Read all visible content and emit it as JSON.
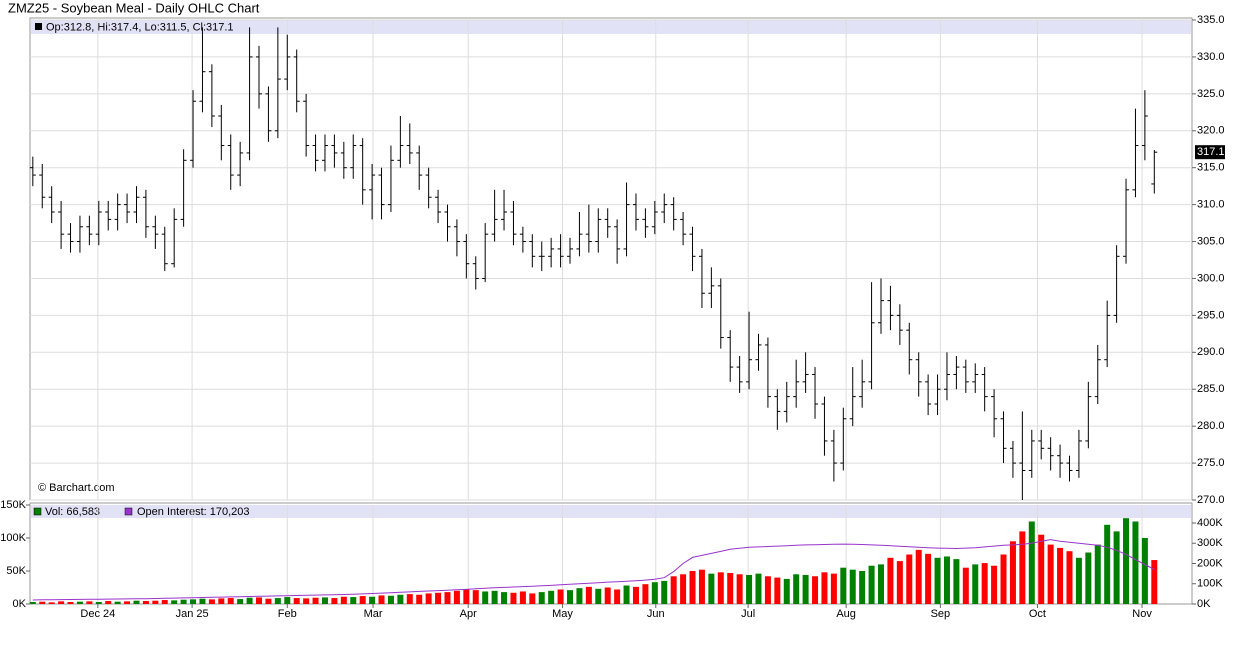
{
  "chart_data": {
    "type": "ohlc",
    "title": "ZMZ25 - Soybean Meal - Daily OHLC Chart",
    "info_text": "Op:312.8, Hi:317.4, Lo:311.5, Cl:317.1",
    "watermark": "© Barchart.com",
    "up_color": "#008000",
    "down_color": "#ff0000",
    "grid": true,
    "open": [
      315,
      314,
      311,
      309,
      306,
      305,
      307,
      306,
      309,
      308,
      310,
      309,
      311,
      307,
      306,
      302,
      308,
      316,
      324,
      328,
      322,
      318,
      314,
      317,
      330,
      325,
      320,
      327,
      330,
      324,
      318,
      316,
      318,
      317,
      315,
      318,
      312,
      314,
      310,
      316,
      318,
      317,
      314,
      311,
      309,
      307,
      305,
      302,
      300,
      306,
      308,
      309,
      306,
      305,
      303,
      303,
      304,
      303,
      304,
      306,
      305,
      308,
      307,
      304,
      310,
      308,
      307,
      309,
      310,
      308,
      306,
      303,
      298,
      299,
      292,
      288,
      286,
      289,
      291,
      284,
      282,
      284,
      286,
      287,
      283,
      278,
      275,
      281,
      284,
      286,
      294,
      297,
      295,
      293,
      289,
      286,
      283,
      285,
      287,
      288,
      286,
      287,
      284,
      281,
      277,
      275,
      274,
      278,
      277,
      276,
      275,
      274,
      278,
      284,
      289,
      295,
      303,
      312,
      318,
      312.8
    ],
    "high": [
      316.5,
      315.5,
      312.5,
      310.5,
      307.5,
      308.5,
      308.5,
      310.5,
      310.5,
      311.5,
      311.5,
      312.5,
      312,
      308.5,
      307,
      309.5,
      317.5,
      325.5,
      334,
      329,
      323.5,
      319.5,
      318.5,
      334,
      331.5,
      326,
      334,
      333,
      331,
      325,
      319.5,
      319.5,
      319.5,
      318.5,
      319.5,
      319,
      315.5,
      315,
      318,
      322,
      321,
      318,
      315,
      312,
      310,
      308,
      306,
      303,
      307.5,
      312,
      312,
      310.5,
      307,
      306,
      305,
      305.5,
      306,
      305.5,
      309,
      310,
      309.5,
      309.5,
      308,
      313,
      311.5,
      309.5,
      310.5,
      311.5,
      311,
      309,
      307,
      304,
      301.5,
      300,
      293,
      289.5,
      295.5,
      292.5,
      292,
      285,
      286,
      289,
      290,
      288,
      284,
      279.5,
      282.5,
      288,
      289,
      299.5,
      300,
      299,
      296.5,
      294,
      290,
      287,
      287,
      290,
      289.5,
      289,
      288.5,
      288,
      285,
      282,
      278,
      282,
      279.5,
      279.5,
      278.5,
      277.5,
      276,
      279.5,
      286,
      291,
      297,
      304.5,
      313.5,
      323,
      325.5,
      317.4
    ],
    "low": [
      312.5,
      309.5,
      307.5,
      304,
      303.5,
      303.5,
      304.5,
      304.5,
      306.5,
      306.5,
      307.5,
      307.5,
      305.5,
      304,
      301,
      301.5,
      307,
      315,
      322.5,
      320.5,
      316,
      312,
      312.5,
      316,
      323,
      318.5,
      319,
      325.5,
      322.5,
      316.5,
      314.5,
      314.5,
      315,
      313.5,
      313.5,
      310,
      308,
      308,
      309,
      315,
      315.5,
      312,
      309.5,
      307.5,
      305,
      303,
      300,
      298.5,
      299.5,
      305,
      306.5,
      304.5,
      303.5,
      301.5,
      301,
      301.5,
      301.5,
      302,
      303,
      303.5,
      303.5,
      305.5,
      302,
      303,
      306.5,
      305.5,
      306,
      307.5,
      306.5,
      304.5,
      301,
      296,
      296,
      290.5,
      286,
      284.5,
      285,
      287.5,
      282.5,
      279.5,
      280.5,
      282.5,
      284.5,
      281,
      276,
      272.5,
      274,
      280,
      282.5,
      285,
      292.5,
      293,
      291,
      287,
      284,
      281.5,
      281.5,
      283.5,
      285,
      284.5,
      284.5,
      282,
      278.5,
      275,
      273,
      270,
      273,
      275.5,
      274,
      273,
      272.5,
      273,
      277,
      283,
      288,
      294,
      302,
      311,
      316,
      311.5
    ],
    "close": [
      314,
      311,
      309,
      306,
      305,
      307,
      306,
      309,
      308,
      310,
      309,
      311,
      307,
      306,
      302,
      308,
      316,
      324,
      328,
      322,
      318,
      314,
      317,
      330,
      325,
      320,
      327,
      330,
      324,
      318,
      316,
      318,
      317,
      315,
      318,
      312,
      314,
      310,
      316,
      318,
      317,
      314,
      311,
      309,
      307,
      305,
      302,
      300,
      306,
      308,
      309,
      306,
      305,
      303,
      303,
      304,
      303,
      304,
      306,
      305,
      308,
      307,
      304,
      310,
      308,
      307,
      309,
      310,
      308,
      306,
      303,
      298,
      299,
      292,
      288,
      286,
      289,
      291,
      284,
      282,
      284,
      286,
      287,
      283,
      278,
      275,
      281,
      284,
      286,
      294,
      297,
      295,
      293,
      289,
      286,
      283,
      285,
      287,
      288,
      286,
      287,
      284,
      281,
      277,
      275,
      274,
      278,
      277,
      276,
      275,
      274,
      278,
      284,
      289,
      295,
      303,
      312,
      318,
      322,
      317.1
    ],
    "ylim": [
      270,
      335
    ],
    "yticks": [
      {
        "value": 270,
        "label": "270.0"
      },
      {
        "value": 275,
        "label": "275.0"
      },
      {
        "value": 280,
        "label": "280.0"
      },
      {
        "value": 285,
        "label": "285.0"
      },
      {
        "value": 290,
        "label": "290.0"
      },
      {
        "value": 295,
        "label": "295.0"
      },
      {
        "value": 300,
        "label": "300.0"
      },
      {
        "value": 305,
        "label": "305.0"
      },
      {
        "value": 310,
        "label": "310.0"
      },
      {
        "value": 315,
        "label": "315.0"
      },
      {
        "value": 320,
        "label": "320.0"
      },
      {
        "value": 325,
        "label": "325.0"
      },
      {
        "value": 330,
        "label": "330.0"
      },
      {
        "value": 335,
        "label": "335.0"
      }
    ],
    "xlim": [
      -0.3,
      123
    ],
    "xticks": [
      {
        "value": 6.9,
        "label": "Dec 24"
      },
      {
        "value": 16.9,
        "label": "Jan 25"
      },
      {
        "value": 27,
        "label": "Feb"
      },
      {
        "value": 36.1,
        "label": "Mar"
      },
      {
        "value": 46.2,
        "label": "Apr"
      },
      {
        "value": 56.2,
        "label": "May"
      },
      {
        "value": 66.1,
        "label": "Jun"
      },
      {
        "value": 75.9,
        "label": "Jul"
      },
      {
        "value": 86.3,
        "label": "Aug"
      },
      {
        "value": 96.3,
        "label": "Sep"
      },
      {
        "value": 106.6,
        "label": "Oct"
      },
      {
        "value": 117.7,
        "label": "Nov"
      }
    ],
    "volume": {
      "name": "Vol: 66,583",
      "color": "#008000",
      "values": [
        3000,
        3500,
        2500,
        4000,
        3000,
        3500,
        4000,
        3000,
        4500,
        3500,
        4000,
        5000,
        4500,
        5000,
        6000,
        5500,
        6500,
        7000,
        8000,
        7000,
        8500,
        9000,
        7500,
        9500,
        10000,
        8000,
        9000,
        10500,
        9000,
        8500,
        9500,
        10000,
        9000,
        11000,
        10500,
        12000,
        11000,
        13000,
        12500,
        14000,
        15000,
        14000,
        16000,
        17000,
        18000,
        20000,
        22000,
        21000,
        19000,
        20000,
        18000,
        17000,
        19000,
        16000,
        18000,
        20000,
        22000,
        21000,
        24000,
        26000,
        23000,
        25000,
        22000,
        28000,
        26000,
        30000,
        33000,
        35000,
        42000,
        45000,
        50000,
        52000,
        46000,
        48000,
        47000,
        45000,
        44000,
        46000,
        42000,
        40000,
        38000,
        45000,
        44000,
        42000,
        48000,
        46000,
        55000,
        52000,
        50000,
        58000,
        60000,
        70000,
        65000,
        75000,
        82000,
        76000,
        70000,
        72000,
        68000,
        55000,
        60000,
        62000,
        58000,
        75000,
        95000,
        110000,
        125000,
        105000,
        90000,
        85000,
        80000,
        70000,
        78000,
        90000,
        120000,
        110000,
        130000,
        125000,
        100000,
        66583
      ]
    },
    "volume_ylim": [
      0,
      150000
    ],
    "volume_yticks": [
      {
        "value": 0,
        "label": "0K"
      },
      {
        "value": 50000,
        "label": "50K"
      },
      {
        "value": 100000,
        "label": "100K"
      },
      {
        "value": 150000,
        "label": "150K"
      }
    ],
    "open_interest": {
      "name": "Open Interest: 170,203",
      "color": "#9933cc",
      "values": [
        20000,
        20500,
        21000,
        21500,
        22000,
        22500,
        23000,
        23500,
        24000,
        24500,
        25000,
        25500,
        26000,
        27000,
        28000,
        29000,
        30000,
        31000,
        32000,
        33000,
        34000,
        35000,
        36000,
        37000,
        38000,
        39000,
        40000,
        41000,
        42000,
        43000,
        44000,
        45000,
        46000,
        47000,
        48000,
        50000,
        52000,
        54000,
        56000,
        58000,
        60000,
        62000,
        64000,
        66000,
        68000,
        70000,
        72000,
        75000,
        78000,
        80000,
        82000,
        84000,
        86000,
        88000,
        90000,
        92000,
        95000,
        98000,
        100000,
        102000,
        105000,
        108000,
        110000,
        112000,
        115000,
        118000,
        122000,
        130000,
        160000,
        200000,
        230000,
        240000,
        250000,
        260000,
        270000,
        275000,
        280000,
        282000,
        284000,
        286000,
        288000,
        290000,
        292000,
        293000,
        294000,
        295000,
        296000,
        295000,
        294000,
        292000,
        290000,
        288000,
        285000,
        283000,
        280000,
        278000,
        276000,
        275000,
        274000,
        276000,
        278000,
        282000,
        286000,
        290000,
        292000,
        295000,
        300000,
        310000,
        318000,
        310000,
        305000,
        300000,
        295000,
        290000,
        280000,
        265000,
        245000,
        220000,
        195000,
        170203
      ]
    },
    "oi_ylim": [
      0,
      400000
    ],
    "oi_yticks": [
      {
        "value": 0,
        "label": "0K"
      },
      {
        "value": 100000,
        "label": "100K"
      },
      {
        "value": 200000,
        "label": "200K"
      },
      {
        "value": 300000,
        "label": "300K"
      },
      {
        "value": 400000,
        "label": "400K"
      }
    ]
  }
}
